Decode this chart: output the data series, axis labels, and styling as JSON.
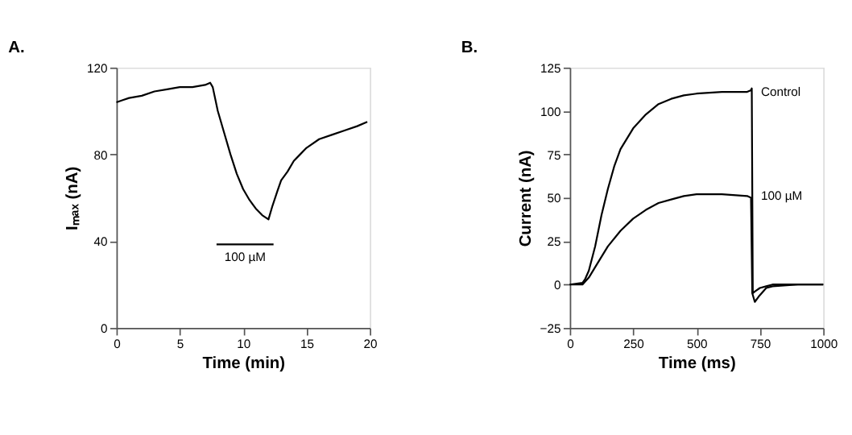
{
  "chart_data": [
    {
      "type": "line",
      "title": "A.",
      "xlabel": "Time (min)",
      "ylabel": "Iₘₐₓ (nA)",
      "xlim": [
        0,
        20
      ],
      "xticks": [
        0,
        5,
        10,
        15,
        20
      ],
      "ylim": [
        0,
        120
      ],
      "yticks": [
        0,
        40,
        80,
        120
      ],
      "grid": false,
      "marker": "none",
      "line_style": "solid",
      "series": [
        {
          "color": "#000000",
          "x": [
            0,
            0.5,
            1,
            2,
            3,
            4,
            5,
            6,
            7,
            7.4,
            7.6,
            8,
            8.5,
            9,
            9.5,
            10,
            10.5,
            11,
            11.5,
            12,
            12.3,
            12.7,
            13,
            13.5,
            14,
            14.5,
            15,
            16,
            17,
            18,
            19,
            19.8
          ],
          "values": [
            104,
            105,
            106,
            107,
            109,
            110,
            111,
            111,
            112,
            113,
            111,
            100,
            90,
            80,
            71,
            64,
            59,
            55,
            52,
            50,
            56,
            63,
            68,
            72,
            77,
            80,
            83,
            87,
            89,
            91,
            93,
            95
          ]
        },
        {
          "name": "100 µM",
          "color": "#000000",
          "x": [
            7.9,
            12.4
          ],
          "values": [
            38.5,
            38.5
          ]
        }
      ]
    },
    {
      "type": "line",
      "title": "B.",
      "xlabel": "Time (ms)",
      "ylabel": "Current (nA)",
      "xlim": [
        0,
        1000
      ],
      "xticks": [
        0,
        250,
        500,
        750,
        1000
      ],
      "ylim": [
        -25,
        125
      ],
      "yticks": [
        -25,
        0,
        25,
        50,
        75,
        100,
        125
      ],
      "grid": false,
      "marker": "none",
      "line_style": "solid",
      "series": [
        {
          "name": "Control",
          "color": "#000000",
          "x": [
            0,
            50,
            60,
            75,
            100,
            125,
            150,
            175,
            200,
            250,
            300,
            350,
            400,
            450,
            500,
            600,
            700,
            715,
            718,
            722,
            730,
            750,
            775,
            800,
            900,
            1000
          ],
          "values": [
            0,
            1,
            3,
            8,
            22,
            40,
            55,
            68,
            78,
            90,
            98,
            104,
            107,
            109,
            110,
            111,
            111,
            112,
            113,
            -5,
            -4,
            -2,
            -1,
            0,
            0,
            0
          ]
        },
        {
          "name": "100 µM",
          "color": "#000000",
          "x": [
            0,
            50,
            75,
            100,
            150,
            200,
            250,
            300,
            350,
            400,
            450,
            500,
            600,
            700,
            715,
            720,
            730,
            745,
            775,
            800,
            900,
            1000
          ],
          "values": [
            0,
            0,
            4,
            10,
            22,
            31,
            38,
            43,
            47,
            49,
            51,
            52,
            52,
            51,
            50,
            -5,
            -10,
            -7,
            -2,
            -1,
            0,
            0
          ]
        }
      ]
    }
  ]
}
